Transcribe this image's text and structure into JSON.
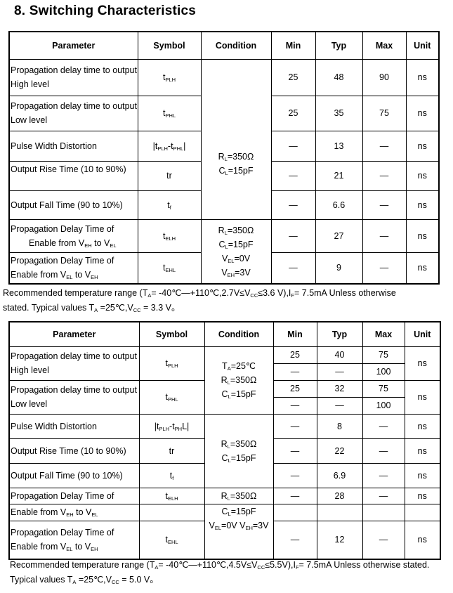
{
  "title": "8. Switching Characteristics",
  "headers": [
    "Parameter",
    "Symbol",
    "Condition",
    "Min",
    "Typ",
    "Max",
    "Unit"
  ],
  "table1": {
    "rows": [
      {
        "param": [
          [
            "Propagation delay time to output"
          ],
          [
            "High level"
          ]
        ],
        "symbol": [
          "t",
          {
            "sub": "PLH"
          }
        ],
        "min": "25",
        "typ": "48",
        "max": "90",
        "unit": "ns"
      },
      {
        "param": [
          [
            "Propagation delay time to output"
          ],
          [
            "Low level"
          ]
        ],
        "symbol": [
          "t",
          {
            "sub": "PHL"
          }
        ],
        "min": "25",
        "typ": "35",
        "max": "75",
        "unit": "ns"
      },
      {
        "param": [
          [
            "Pulse Width Distortion"
          ]
        ],
        "symbol": [
          "|t",
          {
            "sub": "PLH"
          },
          "-t",
          {
            "sub": "PHL"
          },
          "|"
        ],
        "min": "—",
        "typ": "13",
        "max": "—",
        "unit": "ns"
      },
      {
        "param": [
          [
            "Output Rise Time (10 to 90%)"
          ]
        ],
        "symbol": [
          "tr"
        ],
        "min": "—",
        "typ": "21",
        "max": "—",
        "unit": "ns"
      },
      {
        "param": [
          [
            "Output Fall Time (90 to 10%)"
          ]
        ],
        "symbol": [
          "t",
          {
            "sub": "f"
          }
        ],
        "min": "—",
        "typ": "6.6",
        "max": "—",
        "unit": "ns"
      },
      {
        "param": [
          [
            "Propagation Delay Time of"
          ],
          [
            "Enable from V",
            {
              "sub": "EH"
            },
            " to V",
            {
              "sub": "EL"
            }
          ]
        ],
        "symbol": [
          "t",
          {
            "sub": "ELH"
          }
        ],
        "min": "—",
        "typ": "27",
        "max": "—",
        "unit": "ns"
      },
      {
        "param": [
          [
            "Propagation Delay Time of"
          ],
          [
            "Enable from V",
            {
              "sub": "EL"
            },
            " to V",
            {
              "sub": "EH"
            }
          ]
        ],
        "symbol": [
          "t",
          {
            "sub": "EHL"
          }
        ],
        "min": "—",
        "typ": "9",
        "max": "—",
        "unit": "ns"
      }
    ],
    "conditions": [
      [
        [
          "R",
          {
            "sub": "L"
          },
          "=350Ω"
        ],
        [
          "C",
          {
            "sub": "L"
          },
          "=15pF"
        ]
      ],
      [
        [
          "R",
          {
            "sub": "L"
          },
          "=350Ω"
        ],
        [
          "C",
          {
            "sub": "L"
          },
          "=15pF"
        ],
        [
          "V",
          {
            "sub": "EL"
          },
          "=0V"
        ],
        [
          "V",
          {
            "sub": "EH"
          },
          "=3V"
        ]
      ]
    ],
    "note": [
      [
        "Recommended temperature range (T",
        {
          "sub": "A"
        },
        "= -40℃—+110℃,2.7V≤V",
        {
          "sub": "CC"
        },
        "≤3.6 V),I",
        {
          "sub": "F"
        },
        "= 7.5mA Unless otherwise"
      ],
      [
        "stated. Typical values T",
        {
          "sub": "A"
        },
        " =25℃,V",
        {
          "sub": "CC"
        },
        " = 3.3 V。"
      ]
    ]
  },
  "table2": {
    "rows": [
      {
        "param": [
          [
            "Propagation delay time to output"
          ],
          [
            "High level"
          ]
        ],
        "symbol": [
          "t",
          {
            "sub": "PLH"
          }
        ],
        "sub_rows": [
          {
            "min": "25",
            "typ": "40",
            "max": "75"
          },
          {
            "min": "—",
            "typ": "—",
            "max": "100"
          }
        ],
        "unit": "ns"
      },
      {
        "param": [
          [
            "Propagation delay time to output"
          ],
          [
            "Low level"
          ]
        ],
        "symbol": [
          "t",
          {
            "sub": "PHL"
          }
        ],
        "sub_rows": [
          {
            "min": "25",
            "typ": "32",
            "max": "75"
          },
          {
            "min": "—",
            "typ": "—",
            "max": "100"
          }
        ],
        "unit": "ns"
      },
      {
        "param": [
          [
            "Pulse Width Distortion"
          ]
        ],
        "symbol": [
          "|t",
          {
            "sub": "PLH"
          },
          "-t",
          {
            "sub": "PH"
          },
          "L|"
        ],
        "min": "—",
        "typ": "8",
        "max": "—",
        "unit": "ns"
      },
      {
        "param": [
          [
            "Output Rise Time (10 to 90%)"
          ]
        ],
        "symbol": [
          "tr"
        ],
        "min": "—",
        "typ": "22",
        "max": "—",
        "unit": "ns"
      },
      {
        "param": [
          [
            "Output Fall Time (90 to 10%)"
          ]
        ],
        "symbol": [
          "t",
          {
            "sub": "f"
          }
        ],
        "min": "—",
        "typ": "6.9",
        "max": "—",
        "unit": "ns"
      },
      {
        "param": [
          [
            "Propagation Delay Time of"
          ],
          [
            "Enable from V",
            {
              "sub": "EH"
            },
            " to V",
            {
              "sub": "EL"
            }
          ]
        ],
        "symbol": [
          "t",
          {
            "sub": "ELH"
          }
        ],
        "min": "—",
        "typ": "28",
        "max": "—",
        "unit": "ns"
      },
      {
        "param": [
          [
            "Propagation Delay Time of"
          ],
          [
            "Enable from V",
            {
              "sub": "EL"
            },
            " to V",
            {
              "sub": "EH"
            }
          ]
        ],
        "symbol": [
          "t",
          {
            "sub": "EHL"
          }
        ],
        "min": "—",
        "typ": "12",
        "max": "—",
        "unit": "ns"
      }
    ],
    "conditions": [
      [
        [
          "T",
          {
            "sub": "A"
          },
          "=25℃"
        ],
        [
          "R",
          {
            "sub": "L"
          },
          "=350Ω"
        ],
        [
          "C",
          {
            "sub": "L"
          },
          "=15pF"
        ]
      ],
      [
        [
          "R",
          {
            "sub": "L"
          },
          "=350Ω"
        ],
        [
          "C",
          {
            "sub": "L"
          },
          "=15pF"
        ]
      ],
      [
        [
          "R",
          {
            "sub": "L"
          },
          "=350Ω"
        ]
      ],
      [
        [
          "C",
          {
            "sub": "L"
          },
          "=15pF"
        ],
        [
          "V",
          {
            "sub": "EL"
          },
          "=0V   V",
          {
            "sub": "EH"
          },
          "=3V"
        ]
      ]
    ],
    "note": [
      [
        "Recommended temperature range (T",
        {
          "sub": "A"
        },
        "= -40℃—+110℃,4.5V≤V",
        {
          "sub": "CC"
        },
        "≤5.5V),I",
        {
          "sub": "F"
        },
        "= 7.5mA Unless otherwise stated."
      ],
      [
        "Typical values T",
        {
          "sub": "A"
        },
        " =25℃,V",
        {
          "sub": "CC"
        },
        " = 5.0 V。"
      ]
    ]
  }
}
